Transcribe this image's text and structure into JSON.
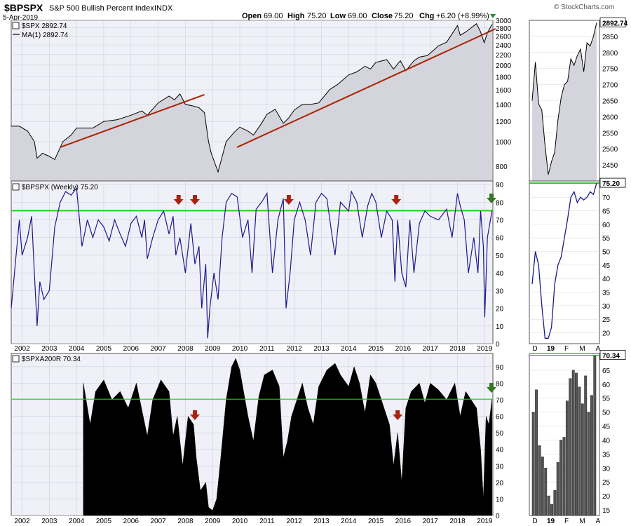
{
  "header": {
    "symbol": "$BPSPX",
    "name": "S&P 500 Bullish Percent Index",
    "exchange": "INDX",
    "date": "5-Apr-2019",
    "open_label": "Open",
    "open": "69.00",
    "high_label": "High",
    "high": "75.20",
    "low_label": "Low",
    "low": "69.00",
    "close_label": "Close",
    "close": "75.20",
    "chg_label": "Chg",
    "chg": "+6.20 (+8.99%)",
    "watermark": "© StockCharts.com"
  },
  "colors": {
    "panel_bg": "#f0f0f8",
    "grid": "#d0d0dc",
    "spx_fill": "#d4d4dc",
    "trendline": "#aa2200",
    "bp_line": "#1a1a8c",
    "threshold": "#22cc22",
    "down_arrow": "#aa2211",
    "up_arrow": "#337722"
  },
  "chart_data": [
    {
      "id": "spx",
      "type": "area",
      "legend": [
        "$SPX 2892.74",
        "MA(1) 2892.74"
      ],
      "y_scale": "log",
      "ylim": [
        700,
        3000
      ],
      "y_ticks": [
        "800",
        "1000",
        "1200",
        "1400",
        "1600",
        "1800",
        "2000",
        "2200",
        "2400",
        "2600",
        "2800",
        "3000"
      ],
      "x_tick_labels": [
        "2002",
        "2003",
        "2004",
        "2005",
        "2006",
        "2007",
        "2008",
        "2009",
        "2010",
        "2011",
        "2012",
        "2013",
        "2014",
        "2015",
        "2016",
        "2017",
        "2018",
        "2019"
      ],
      "x": [
        2001.6,
        2001.9,
        2002.2,
        2002.45,
        2002.55,
        2002.75,
        2002.95,
        2003.2,
        2003.5,
        2003.8,
        2004.0,
        2004.6,
        2005.0,
        2005.5,
        2006.0,
        2006.4,
        2006.6,
        2007.0,
        2007.4,
        2007.6,
        2007.8,
        2008.0,
        2008.3,
        2008.5,
        2008.7,
        2008.85,
        2008.95,
        2009.2,
        2009.5,
        2009.8,
        2010.0,
        2010.3,
        2010.5,
        2010.8,
        2011.0,
        2011.3,
        2011.6,
        2011.8,
        2012.0,
        2012.3,
        2012.6,
        2012.9,
        2013.3,
        2013.6,
        2014.0,
        2014.3,
        2014.6,
        2014.8,
        2015.0,
        2015.4,
        2015.65,
        2015.9,
        2016.1,
        2016.4,
        2016.6,
        2016.9,
        2017.3,
        2017.6,
        2018.0,
        2018.1,
        2018.3,
        2018.7,
        2018.85,
        2018.98,
        2019.1,
        2019.27
      ],
      "values": [
        1150,
        1150,
        1100,
        1000,
        860,
        900,
        880,
        850,
        1000,
        1060,
        1130,
        1130,
        1200,
        1220,
        1270,
        1320,
        1270,
        1420,
        1510,
        1460,
        1540,
        1400,
        1380,
        1360,
        1300,
        1000,
        900,
        760,
        1000,
        1090,
        1140,
        1100,
        1060,
        1180,
        1280,
        1340,
        1180,
        1240,
        1330,
        1400,
        1400,
        1420,
        1600,
        1680,
        1830,
        1880,
        1980,
        1930,
        2050,
        2100,
        1930,
        2080,
        1900,
        2080,
        2150,
        2180,
        2380,
        2460,
        2860,
        2620,
        2700,
        2910,
        2700,
        2450,
        2680,
        2892.74
      ],
      "trendlines": [
        {
          "x1": 2003.4,
          "y1": 950,
          "x2": 2008.7,
          "y2": 1530
        },
        {
          "x1": 2009.9,
          "y1": 950,
          "x2": 2019.4,
          "y2": 2780
        }
      ],
      "zoom": {
        "label": "2892.74",
        "y_ticks": [
          "2450",
          "2500",
          "2550",
          "2600",
          "2650",
          "2700",
          "2750",
          "2800",
          "2850"
        ],
        "ylim": [
          2400,
          2900
        ],
        "x_tick_labels": [
          "D",
          "19",
          "F",
          "M",
          "A"
        ],
        "values": [
          2650,
          2770,
          2640,
          2620,
          2510,
          2420,
          2460,
          2490,
          2590,
          2660,
          2700,
          2710,
          2780,
          2760,
          2790,
          2810,
          2740,
          2830,
          2820,
          2850,
          2892.74
        ]
      }
    },
    {
      "id": "bpspx",
      "type": "line",
      "legend": "$BPSPX (Weekly) 75.20",
      "ylim": [
        0,
        92
      ],
      "y_ticks": [
        "0",
        "10",
        "20",
        "30",
        "40",
        "50",
        "60",
        "70",
        "80",
        "90"
      ],
      "threshold": 75.2,
      "x": [
        2001.6,
        2001.75,
        2001.9,
        2002.0,
        2002.2,
        2002.35,
        2002.45,
        2002.55,
        2002.65,
        2002.8,
        2003.0,
        2003.2,
        2003.4,
        2003.6,
        2003.8,
        2004.0,
        2004.2,
        2004.4,
        2004.6,
        2004.8,
        2005.0,
        2005.2,
        2005.4,
        2005.6,
        2005.8,
        2006.0,
        2006.2,
        2006.4,
        2006.5,
        2006.6,
        2006.8,
        2007.0,
        2007.2,
        2007.4,
        2007.55,
        2007.65,
        2007.8,
        2008.0,
        2008.2,
        2008.35,
        2008.5,
        2008.6,
        2008.75,
        2008.82,
        2008.9,
        2009.05,
        2009.2,
        2009.35,
        2009.5,
        2009.7,
        2009.9,
        2010.1,
        2010.3,
        2010.45,
        2010.6,
        2010.8,
        2011.0,
        2011.2,
        2011.4,
        2011.6,
        2011.7,
        2011.85,
        2012.0,
        2012.2,
        2012.4,
        2012.6,
        2012.8,
        2013.0,
        2013.2,
        2013.4,
        2013.5,
        2013.7,
        2014.0,
        2014.1,
        2014.3,
        2014.5,
        2014.7,
        2014.85,
        2015.0,
        2015.2,
        2015.4,
        2015.6,
        2015.7,
        2015.8,
        2015.95,
        2016.1,
        2016.25,
        2016.4,
        2016.6,
        2016.8,
        2017.0,
        2017.3,
        2017.6,
        2017.8,
        2018.0,
        2018.1,
        2018.25,
        2018.4,
        2018.6,
        2018.75,
        2018.85,
        2018.95,
        2019.0,
        2019.1,
        2019.27
      ],
      "values": [
        20,
        45,
        70,
        50,
        60,
        72,
        40,
        10,
        35,
        25,
        30,
        66,
        80,
        86,
        84,
        88,
        55,
        70,
        60,
        70,
        66,
        58,
        70,
        62,
        55,
        68,
        72,
        60,
        70,
        48,
        60,
        70,
        75,
        62,
        72,
        50,
        60,
        40,
        68,
        45,
        55,
        20,
        45,
        3,
        20,
        40,
        25,
        60,
        80,
        85,
        83,
        60,
        70,
        40,
        76,
        80,
        85,
        40,
        70,
        82,
        20,
        40,
        70,
        80,
        70,
        50,
        80,
        85,
        82,
        60,
        50,
        80,
        75,
        86,
        80,
        60,
        78,
        85,
        80,
        60,
        75,
        70,
        35,
        70,
        40,
        32,
        70,
        40,
        68,
        75,
        72,
        70,
        76,
        60,
        85,
        78,
        70,
        40,
        60,
        40,
        75,
        55,
        15,
        60,
        75.2
      ],
      "annotations": [
        {
          "type": "down-arrow",
          "x": 2007.75
        },
        {
          "type": "down-arrow",
          "x": 2008.35
        },
        {
          "type": "down-arrow",
          "x": 2011.8
        },
        {
          "type": "down-arrow",
          "x": 2015.75
        },
        {
          "type": "up-arrow",
          "x": 2019.25
        }
      ],
      "zoom": {
        "label": "75.20",
        "y_ticks": [
          "20",
          "25",
          "30",
          "35",
          "40",
          "45",
          "50",
          "55",
          "60",
          "65",
          "70"
        ],
        "ylim": [
          16,
          76
        ],
        "x_tick_labels": [
          "D",
          "19",
          "F",
          "M",
          "A"
        ],
        "values": [
          38,
          50,
          45,
          30,
          18,
          18,
          22,
          38,
          45,
          48,
          55,
          62,
          70,
          72,
          68,
          70,
          69,
          70,
          72,
          71,
          75.2
        ]
      }
    },
    {
      "id": "spxa200r",
      "type": "area",
      "legend": "$SPXA200R 70.34",
      "ylim": [
        0,
        98
      ],
      "y_ticks": [
        "0",
        "10",
        "20",
        "30",
        "40",
        "50",
        "60",
        "70",
        "80",
        "90"
      ],
      "threshold": 70.34,
      "x_tick_labels": [
        "2002",
        "2003",
        "2004",
        "2005",
        "2006",
        "2007",
        "2008",
        "2009",
        "2010",
        "2011",
        "2012",
        "2013",
        "2014",
        "2015",
        "2016",
        "2017",
        "2018",
        "2019"
      ],
      "x": [
        2004.25,
        2004.5,
        2004.7,
        2005.0,
        2005.3,
        2005.6,
        2005.9,
        2006.2,
        2006.45,
        2006.6,
        2006.8,
        2007.1,
        2007.4,
        2007.55,
        2007.7,
        2007.9,
        2008.1,
        2008.3,
        2008.4,
        2008.55,
        2008.75,
        2008.85,
        2009.0,
        2009.15,
        2009.3,
        2009.5,
        2009.7,
        2009.85,
        2010.0,
        2010.3,
        2010.5,
        2010.7,
        2010.9,
        2011.2,
        2011.45,
        2011.6,
        2011.75,
        2011.9,
        2012.1,
        2012.3,
        2012.5,
        2012.7,
        2012.9,
        2013.2,
        2013.5,
        2013.7,
        2014.0,
        2014.2,
        2014.4,
        2014.6,
        2014.8,
        2015.0,
        2015.2,
        2015.5,
        2015.65,
        2015.8,
        2015.95,
        2016.1,
        2016.3,
        2016.6,
        2016.8,
        2017.0,
        2017.3,
        2017.6,
        2017.9,
        2018.1,
        2018.3,
        2018.5,
        2018.7,
        2018.85,
        2018.95,
        2019.05,
        2019.15,
        2019.27
      ],
      "values": [
        80,
        55,
        75,
        82,
        70,
        75,
        65,
        80,
        60,
        48,
        70,
        82,
        75,
        48,
        60,
        30,
        60,
        55,
        35,
        15,
        20,
        5,
        3,
        10,
        35,
        70,
        90,
        95,
        88,
        60,
        45,
        72,
        85,
        88,
        78,
        35,
        45,
        60,
        70,
        80,
        65,
        55,
        78,
        88,
        92,
        85,
        78,
        90,
        80,
        62,
        85,
        80,
        70,
        55,
        30,
        50,
        20,
        65,
        75,
        80,
        68,
        80,
        76,
        70,
        80,
        60,
        75,
        70,
        65,
        40,
        10,
        60,
        55,
        70.34
      ],
      "annotations": [
        {
          "type": "down-arrow",
          "x": 2008.35
        },
        {
          "type": "down-arrow",
          "x": 2015.8
        },
        {
          "type": "up-arrow",
          "x": 2019.25
        }
      ],
      "zoom": {
        "label": "70.34",
        "y_ticks": [
          "15",
          "20",
          "25",
          "30",
          "35",
          "40",
          "45",
          "50",
          "55",
          "60",
          "65"
        ],
        "ylim": [
          13,
          71
        ],
        "x_tick_labels": [
          "D",
          "19",
          "F",
          "M",
          "A"
        ],
        "values": [
          50,
          58,
          38,
          34,
          30,
          20,
          17,
          22,
          32,
          40,
          41,
          54,
          62,
          65,
          64,
          59,
          53,
          63,
          50,
          56,
          70.34
        ]
      }
    }
  ]
}
